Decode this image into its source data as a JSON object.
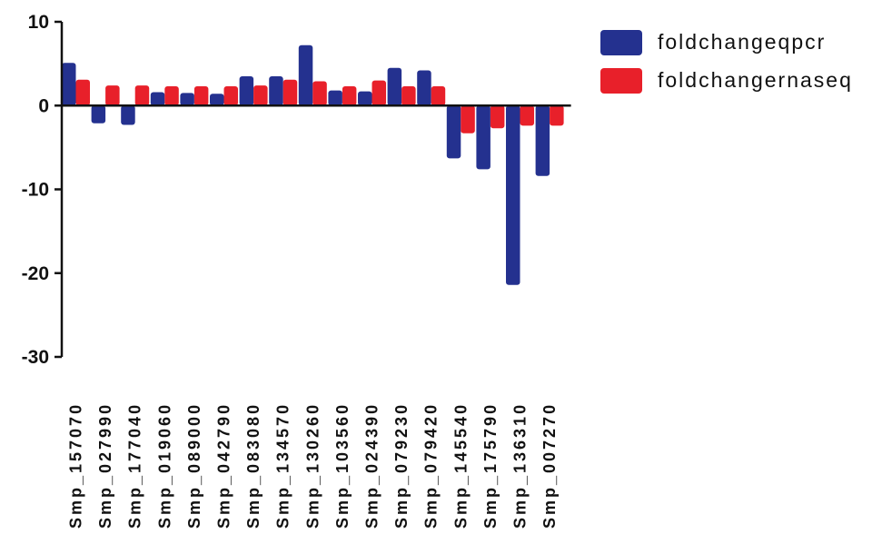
{
  "chart_data": {
    "type": "bar",
    "categories": [
      "Smp_157070",
      "Smp_027990",
      "Smp_177040",
      "Smp_019060",
      "Smp_089000",
      "Smp_042790",
      "Smp_083080",
      "Smp_134570",
      "Smp_130260",
      "Smp_103560",
      "Smp_024390",
      "Smp_079230",
      "Smp_079420",
      "Smp_145540",
      "Smp_175790",
      "Smp_136310",
      "Smp_007270"
    ],
    "series": [
      {
        "name": "foldchangeqpcr",
        "color": "#24318f",
        "values": [
          5.1,
          -2.1,
          -2.3,
          1.6,
          1.5,
          1.4,
          3.5,
          3.5,
          7.2,
          1.8,
          1.7,
          4.5,
          4.2,
          -6.3,
          -7.6,
          -21.4,
          -8.4
        ]
      },
      {
        "name": "foldchangernaseq",
        "color": "#e8202a",
        "values": [
          3.1,
          2.4,
          2.4,
          2.3,
          2.3,
          2.3,
          2.4,
          3.1,
          2.9,
          2.3,
          3.0,
          2.3,
          2.3,
          -3.3,
          -2.7,
          -2.4,
          -2.4
        ]
      }
    ],
    "yticks": [
      10,
      0,
      -10,
      -20,
      -30
    ],
    "ylim": [
      -30,
      10
    ],
    "grid": false,
    "legend": "top-right"
  }
}
